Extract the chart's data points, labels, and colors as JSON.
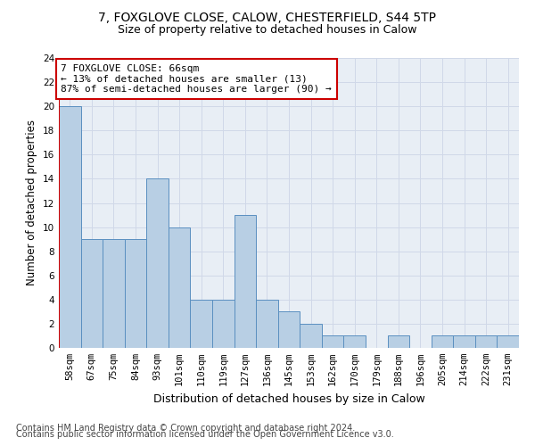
{
  "title_line1": "7, FOXGLOVE CLOSE, CALOW, CHESTERFIELD, S44 5TP",
  "title_line2": "Size of property relative to detached houses in Calow",
  "xlabel": "Distribution of detached houses by size in Calow",
  "ylabel": "Number of detached properties",
  "categories": [
    "58sqm",
    "67sqm",
    "75sqm",
    "84sqm",
    "93sqm",
    "101sqm",
    "110sqm",
    "119sqm",
    "127sqm",
    "136sqm",
    "145sqm",
    "153sqm",
    "162sqm",
    "170sqm",
    "179sqm",
    "188sqm",
    "196sqm",
    "205sqm",
    "214sqm",
    "222sqm",
    "231sqm"
  ],
  "values": [
    20,
    9,
    9,
    9,
    14,
    10,
    4,
    4,
    11,
    4,
    3,
    2,
    1,
    1,
    0,
    1,
    0,
    1,
    1,
    1,
    1
  ],
  "bar_color": "#b8cfe4",
  "bar_edge_color": "#5a8fc0",
  "highlight_color_edge": "#cc0000",
  "annotation_line1": "7 FOXGLOVE CLOSE: 66sqm",
  "annotation_line2": "← 13% of detached houses are smaller (13)",
  "annotation_line3": "87% of semi-detached houses are larger (90) →",
  "annotation_box_edge": "#cc0000",
  "ylim": [
    0,
    24
  ],
  "yticks": [
    0,
    2,
    4,
    6,
    8,
    10,
    12,
    14,
    16,
    18,
    20,
    22,
    24
  ],
  "grid_color": "#d0d8e8",
  "bg_color": "#e8eef5",
  "footer_line1": "Contains HM Land Registry data © Crown copyright and database right 2024.",
  "footer_line2": "Contains public sector information licensed under the Open Government Licence v3.0.",
  "title_fontsize": 10,
  "subtitle_fontsize": 9,
  "axis_label_fontsize": 8.5,
  "tick_fontsize": 7.5,
  "annotation_fontsize": 8,
  "footer_fontsize": 7
}
